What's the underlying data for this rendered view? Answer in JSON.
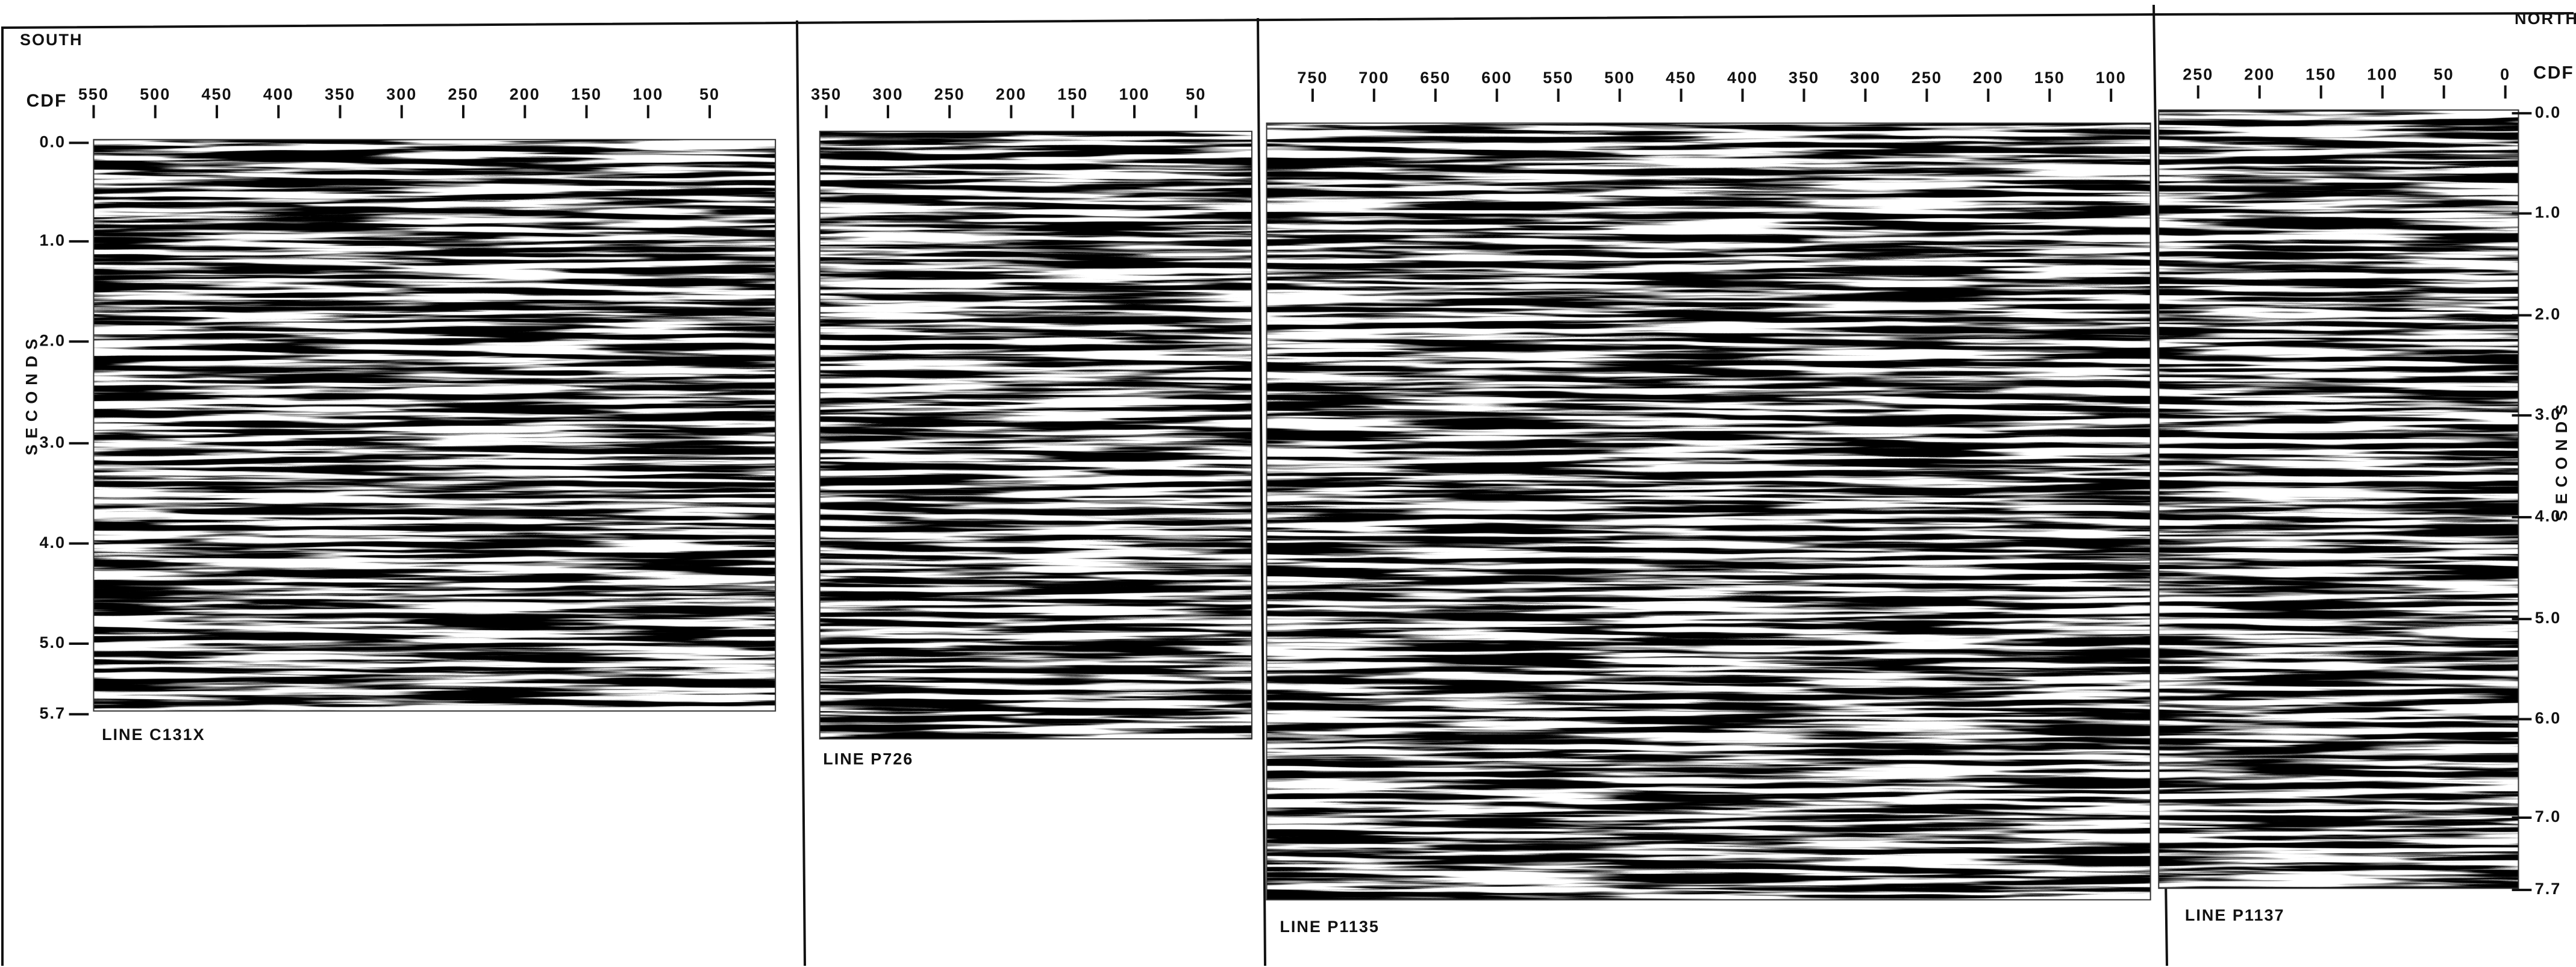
{
  "header": {
    "south": "SOUTH",
    "north": "NORTH"
  },
  "panels": [
    {
      "line_label": "LINE C131X",
      "cdf_label": "CDF",
      "cdf_ticks": [
        "550",
        "500",
        "450",
        "400",
        "350",
        "300",
        "250",
        "200",
        "150",
        "100",
        "50"
      ],
      "seconds_label": "SECONDS",
      "seconds_ticks": [
        "0.0",
        "1.0",
        "2.0",
        "3.0",
        "4.0",
        "5.0",
        "5.7"
      ]
    },
    {
      "line_label": "LINE P726",
      "cdf_ticks": [
        "350",
        "300",
        "250",
        "200",
        "150",
        "100",
        "50"
      ]
    },
    {
      "line_label": "LINE P1135",
      "cdf_ticks": [
        "750",
        "700",
        "650",
        "600",
        "550",
        "500",
        "450",
        "400",
        "350",
        "300",
        "250",
        "200",
        "150",
        "100"
      ]
    },
    {
      "line_label": "LINE P1137",
      "cdf_label": "CDF",
      "cdf_ticks": [
        "250",
        "200",
        "150",
        "100",
        "50",
        "0"
      ],
      "seconds_label": "SECONDS",
      "seconds_ticks": [
        "0.0",
        "1.0",
        "2.0",
        "3.0",
        "4.0",
        "5.0",
        "6.0",
        "7.0",
        "7.7"
      ]
    }
  ]
}
